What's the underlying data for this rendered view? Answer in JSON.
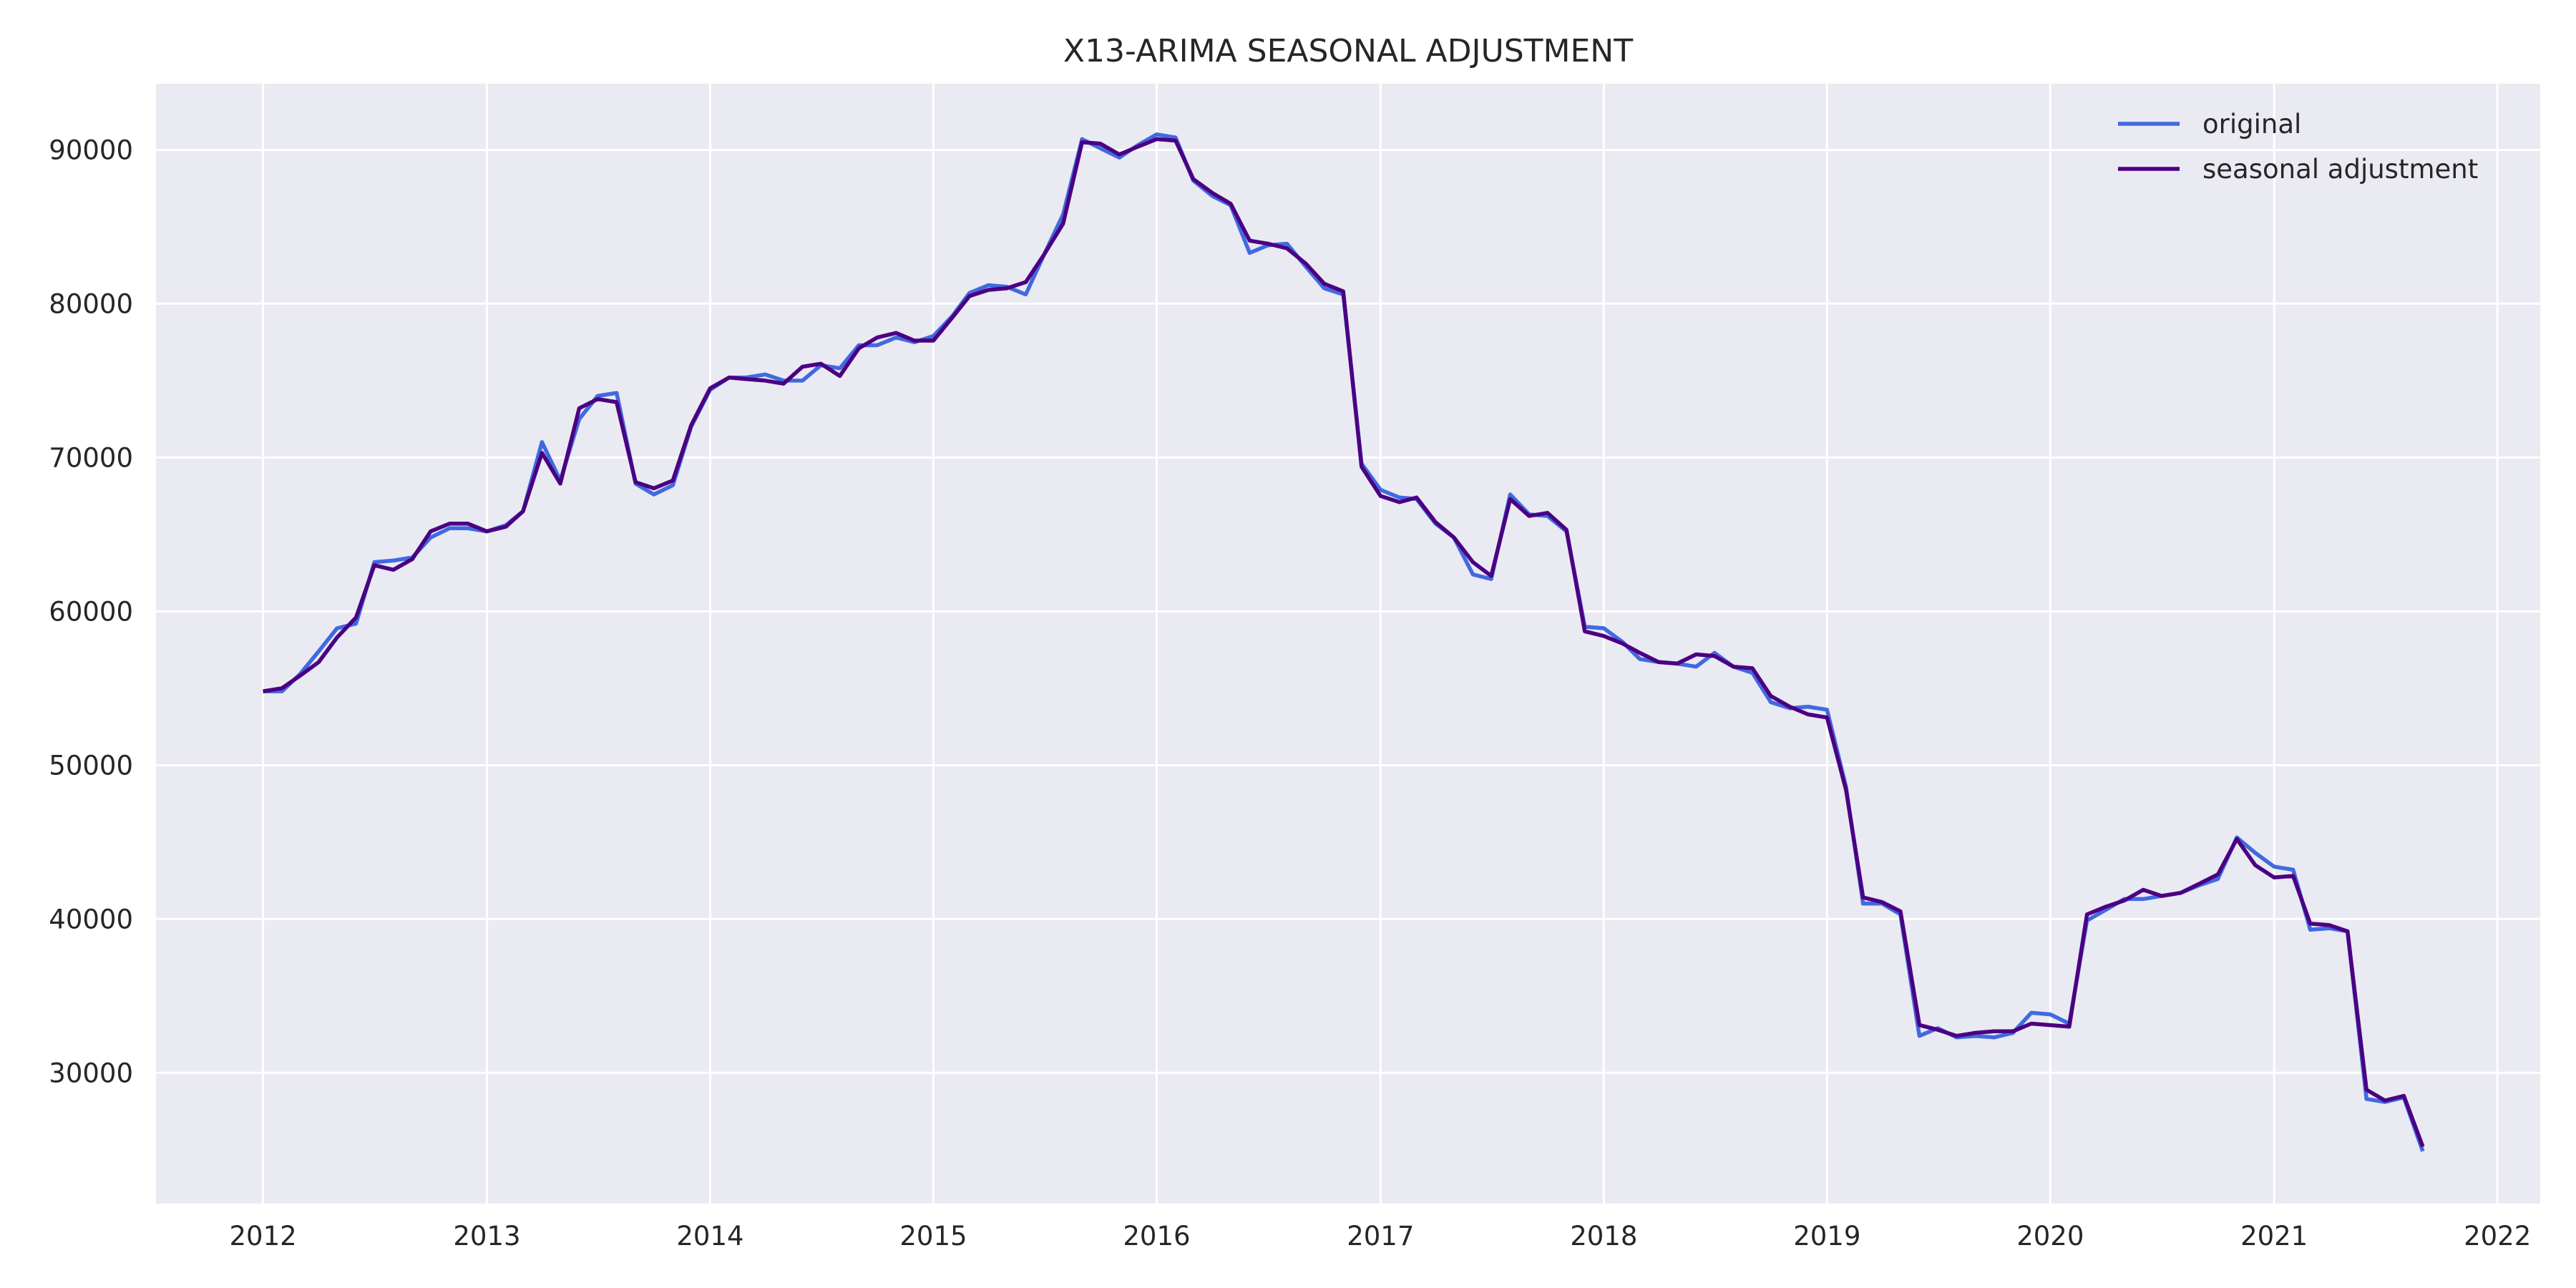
{
  "chart_data": {
    "type": "line",
    "title": "X13-ARIMA SEASONAL ADJUSTMENT",
    "xlabel": "",
    "ylabel": "",
    "x_start": "2012-01",
    "x_ticks": [
      "2012",
      "2013",
      "2014",
      "2015",
      "2016",
      "2017",
      "2018",
      "2019",
      "2020",
      "2021",
      "2022"
    ],
    "xlim": [
      "2011-07-10",
      "2022-03-12"
    ],
    "y_ticks": [
      30000,
      40000,
      50000,
      60000,
      70000,
      80000,
      90000
    ],
    "ylim": [
      21500,
      94300
    ],
    "grid": true,
    "legend_position": "top-right",
    "colors": {
      "background": "#eaeaf2",
      "grid": "#ffffff",
      "original": "#4169e1",
      "seasonal": "#4b0082"
    },
    "series": [
      {
        "name": "original",
        "values": [
          54800,
          54800,
          55900,
          57400,
          58900,
          59200,
          63200,
          63300,
          63500,
          64800,
          65400,
          65400,
          65200,
          65600,
          66500,
          71000,
          68500,
          72500,
          74000,
          74200,
          68300,
          67600,
          68200,
          72000,
          74400,
          75200,
          75200,
          75400,
          75000,
          75000,
          76000,
          75800,
          77300,
          77300,
          77800,
          77500,
          77900,
          79200,
          80700,
          81200,
          81100,
          80600,
          83200,
          85800,
          90700,
          90100,
          89500,
          90300,
          91000,
          90800,
          88000,
          87000,
          86400,
          83300,
          83800,
          83900,
          82400,
          81000,
          80600,
          69600,
          67900,
          67400,
          67300,
          65700,
          64800,
          62400,
          62100,
          67600,
          66300,
          66200,
          65200,
          59000,
          58900,
          58000,
          56900,
          56700,
          56600,
          56400,
          57300,
          56400,
          56000,
          54100,
          53700,
          53800,
          53600,
          48600,
          41000,
          41000,
          40300,
          32400,
          32900,
          32300,
          32400,
          32300,
          32600,
          33900,
          33800,
          33200,
          39900,
          40600,
          41300,
          41300,
          41500,
          41700,
          42200,
          42600,
          45300,
          44300,
          43400,
          43200,
          39300,
          39400,
          39200,
          28300,
          28100,
          28400,
          24900
        ]
      },
      {
        "name": "seasonal adjustment",
        "values": [
          54800,
          55000,
          55800,
          56700,
          58300,
          59600,
          63000,
          62700,
          63400,
          65200,
          65700,
          65700,
          65200,
          65500,
          66500,
          70300,
          68300,
          73200,
          73800,
          73600,
          68400,
          68000,
          68500,
          72100,
          74500,
          75200,
          75100,
          75000,
          74800,
          75900,
          76100,
          75300,
          77100,
          77800,
          78100,
          77600,
          77600,
          79100,
          80500,
          80900,
          81000,
          81400,
          83200,
          85200,
          90500,
          90400,
          89700,
          90200,
          90700,
          90600,
          88100,
          87200,
          86500,
          84100,
          83900,
          83600,
          82600,
          81300,
          80800,
          69400,
          67500,
          67100,
          67400,
          65800,
          64800,
          63200,
          62300,
          67300,
          66200,
          66400,
          65300,
          58700,
          58400,
          57900,
          57300,
          56700,
          56600,
          57200,
          57100,
          56400,
          56300,
          54500,
          53800,
          53300,
          53100,
          48400,
          41400,
          41100,
          40500,
          33100,
          32800,
          32400,
          32600,
          32700,
          32700,
          33200,
          33100,
          33000,
          40300,
          40800,
          41200,
          41900,
          41500,
          41700,
          42300,
          42900,
          45200,
          43500,
          42700,
          42800,
          39700,
          39600,
          39200,
          28900,
          28200,
          28500,
          25200
        ]
      }
    ]
  }
}
